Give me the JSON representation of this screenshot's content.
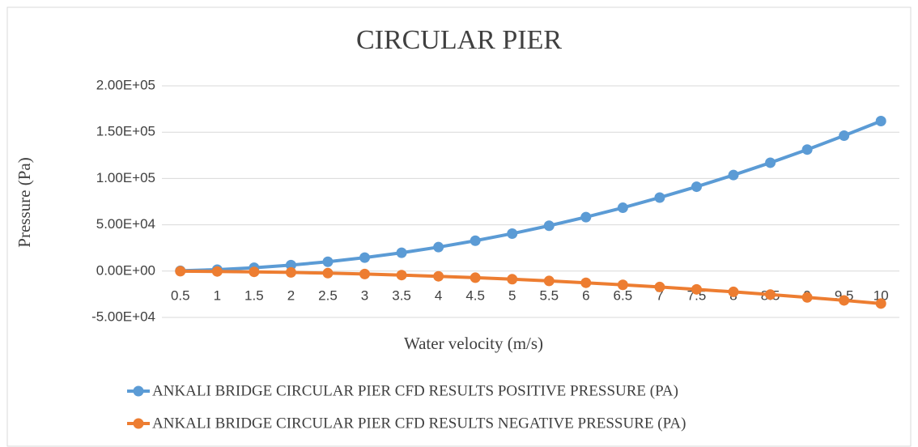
{
  "chart_data": {
    "type": "line",
    "title": "CIRCULAR PIER",
    "x_label": "Water velocity (m/s)",
    "y_label": "Pressure (Pa)",
    "categories": [
      "0.5",
      "1",
      "1.5",
      "2",
      "2.5",
      "3",
      "3.5",
      "4",
      "4.5",
      "5",
      "5.5",
      "6",
      "6.5",
      "7",
      "7.5",
      "8",
      "8.5",
      "9",
      "9.5",
      "10"
    ],
    "series": [
      {
        "name": "ANKALI BRIDGE CIRCULAR PIER CFD RESULTS POSITIVE PRESSURE (PA)",
        "color": "#5b9bd5",
        "values": [
          400,
          1620,
          3650,
          6480,
          10100,
          14600,
          19800,
          25900,
          32800,
          40500,
          49000,
          58300,
          68400,
          79400,
          91100,
          103700,
          117000,
          131200,
          146200,
          162000
        ]
      },
      {
        "name": "ANKALI BRIDGE CIRCULAR PIER CFD RESULTS NEGATIVE PRESSURE (PA)",
        "color": "#ed7d31",
        "values": [
          -90,
          -350,
          -790,
          -1400,
          -2190,
          -3150,
          -4290,
          -5600,
          -7090,
          -8750,
          -10590,
          -12600,
          -14790,
          -17150,
          -19690,
          -22400,
          -25290,
          -28350,
          -31590,
          -35000
        ]
      }
    ],
    "ylim": [
      -50000,
      200000
    ],
    "yticks": [
      {
        "value": -50000,
        "label": "-5.00E+04"
      },
      {
        "value": 0,
        "label": "0.00E+00"
      },
      {
        "value": 50000,
        "label": "5.00E+04"
      },
      {
        "value": 100000,
        "label": "1.00E+05"
      },
      {
        "value": 150000,
        "label": "1.50E+05"
      },
      {
        "value": 200000,
        "label": "2.00E+05"
      }
    ],
    "grid": true,
    "legend": "bottom"
  }
}
